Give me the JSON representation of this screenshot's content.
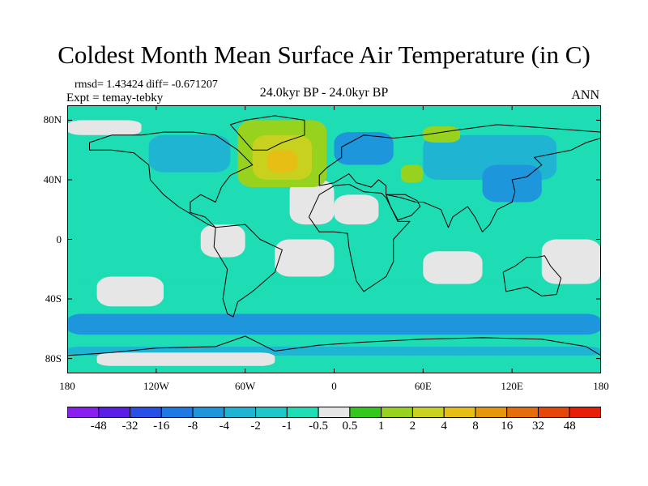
{
  "title": "Coldest Month Mean Surface Air Temperature (in C)",
  "stats": {
    "rmsd": "rmsd= 1.43424 diff= -0.671207",
    "expt": "Expt = temay-tebky",
    "period": "24.0kyr BP - 24.0kyr BP",
    "season": "ANN"
  },
  "chart_data": {
    "type": "heatmap",
    "projection": "cylindrical-equidistant",
    "lon_range": [
      -180,
      180
    ],
    "lat_range": [
      -90,
      90
    ],
    "lat_ticks": [
      {
        "value": 80,
        "label": "80N"
      },
      {
        "value": 40,
        "label": "40N"
      },
      {
        "value": 0,
        "label": "0"
      },
      {
        "value": -40,
        "label": "40S"
      },
      {
        "value": -80,
        "label": "80S"
      }
    ],
    "lon_ticks": [
      {
        "value": -180,
        "label": "180"
      },
      {
        "value": -120,
        "label": "120W"
      },
      {
        "value": -60,
        "label": "60W"
      },
      {
        "value": 0,
        "label": "0"
      },
      {
        "value": 60,
        "label": "60E"
      },
      {
        "value": 120,
        "label": "120E"
      },
      {
        "value": 180,
        "label": "180"
      }
    ],
    "colorbar": {
      "labels": [
        "-48",
        "-32",
        "-16",
        "-8",
        "-4",
        "-2",
        "-1",
        "-0.5",
        "0.5",
        "1",
        "2",
        "4",
        "8",
        "16",
        "32",
        "48"
      ],
      "colors": [
        "#8a1ef0",
        "#5a1ee6",
        "#2850e6",
        "#1e78e6",
        "#1e96dc",
        "#1eb4d2",
        "#1ec8c8",
        "#1edcb4",
        "#e6e6e6",
        "#32c81e",
        "#96d21e",
        "#c8d21e",
        "#e6be14",
        "#e6960a",
        "#e66e0a",
        "#e6460a",
        "#e61e0a"
      ]
    },
    "regions": [
      {
        "name": "southern-ocean-band",
        "lon": [
          -180,
          180
        ],
        "lat": [
          -64,
          -50
        ],
        "level": -4
      },
      {
        "name": "southern-high-band",
        "lon": [
          -180,
          180
        ],
        "lat": [
          -74,
          -64
        ],
        "level": -1
      },
      {
        "name": "southern-midlat-band",
        "lon": [
          -180,
          180
        ],
        "lat": [
          -50,
          -30
        ],
        "level": -1
      },
      {
        "name": "tropical-band",
        "lon": [
          -180,
          180
        ],
        "lat": [
          -30,
          25
        ],
        "level": -1
      },
      {
        "name": "north-pacific",
        "lon": [
          -180,
          -100
        ],
        "lat": [
          25,
          60
        ],
        "level": -1
      },
      {
        "name": "arctic-band",
        "lon": [
          -180,
          180
        ],
        "lat": [
          65,
          90
        ],
        "level": -1
      },
      {
        "name": "siberia-cool",
        "lon": [
          60,
          150
        ],
        "lat": [
          40,
          70
        ],
        "level": -2
      },
      {
        "name": "east-asia-cool",
        "lon": [
          100,
          140
        ],
        "lat": [
          25,
          50
        ],
        "level": -4
      },
      {
        "name": "scandinavia-cool",
        "lon": [
          0,
          40
        ],
        "lat": [
          50,
          72
        ],
        "level": -4
      },
      {
        "name": "north-america-cool",
        "lon": [
          -125,
          -70
        ],
        "lat": [
          45,
          70
        ],
        "level": -2
      },
      {
        "name": "south-america-cool",
        "lon": [
          -75,
          -40
        ],
        "lat": [
          -40,
          5
        ],
        "level": -1
      },
      {
        "name": "antarctic-coast-cool",
        "lon": [
          -180,
          180
        ],
        "lat": [
          -78,
          -72
        ],
        "level": -2
      },
      {
        "name": "pacific-neutral-1",
        "lon": [
          -160,
          -115
        ],
        "lat": [
          -45,
          -25
        ],
        "level": 0
      },
      {
        "name": "pacific-neutral-2",
        "lon": [
          -90,
          -60
        ],
        "lat": [
          -12,
          10
        ],
        "level": 0
      },
      {
        "name": "atlantic-neutral",
        "lon": [
          -40,
          0
        ],
        "lat": [
          -25,
          0
        ],
        "level": 0
      },
      {
        "name": "north-atlantic-neutral",
        "lon": [
          -30,
          0
        ],
        "lat": [
          10,
          40
        ],
        "level": 0
      },
      {
        "name": "sahara-neutral",
        "lon": [
          0,
          30
        ],
        "lat": [
          10,
          30
        ],
        "level": 0
      },
      {
        "name": "indian-neutral",
        "lon": [
          60,
          100
        ],
        "lat": [
          -30,
          -8
        ],
        "level": 0
      },
      {
        "name": "australia-neutral",
        "lon": [
          140,
          180
        ],
        "lat": [
          -30,
          0
        ],
        "level": 0
      },
      {
        "name": "arctic-neutral",
        "lon": [
          -180,
          -130
        ],
        "lat": [
          70,
          80
        ],
        "level": 0
      },
      {
        "name": "southern-neutral",
        "lon": [
          -160,
          -40
        ],
        "lat": [
          -85,
          -76
        ],
        "level": 0
      },
      {
        "name": "north-atlantic-warm",
        "lon": [
          -65,
          -5
        ],
        "lat": [
          35,
          80
        ],
        "level": 2
      },
      {
        "name": "north-atlantic-warmer",
        "lon": [
          -55,
          -15
        ],
        "lat": [
          40,
          70
        ],
        "level": 4
      },
      {
        "name": "north-atlantic-warmest",
        "lon": [
          -45,
          -25
        ],
        "lat": [
          45,
          60
        ],
        "level": 8
      },
      {
        "name": "siberia-warm",
        "lon": [
          60,
          85
        ],
        "lat": [
          65,
          76
        ],
        "level": 2
      },
      {
        "name": "caspian-warm",
        "lon": [
          45,
          60
        ],
        "lat": [
          38,
          50
        ],
        "level": 2
      }
    ]
  }
}
